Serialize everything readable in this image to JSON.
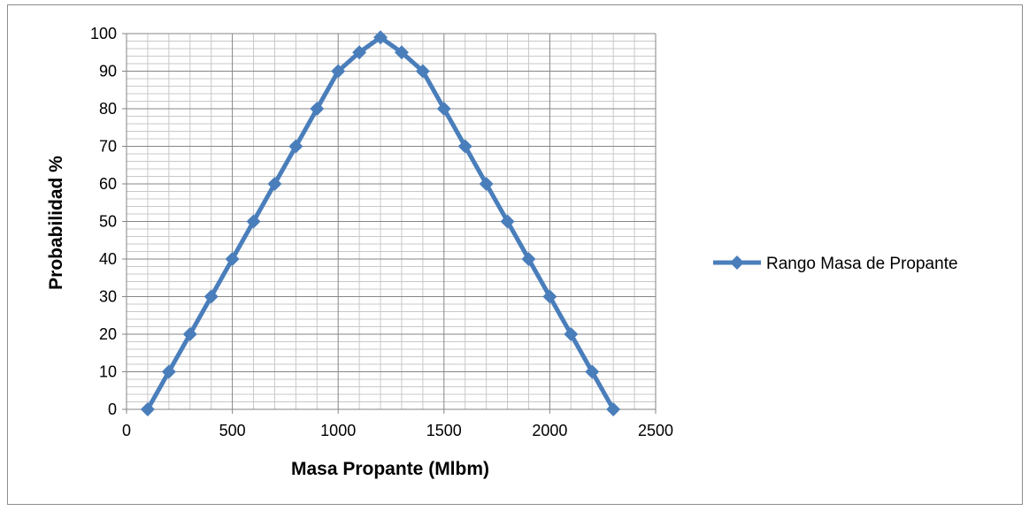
{
  "chart_data": {
    "type": "scatter",
    "xlabel": "Masa Propante (Mlbm)",
    "ylabel": "Probabilidad %",
    "xlim": [
      0,
      2500
    ],
    "ylim": [
      0,
      100
    ],
    "x_ticks": [
      "0",
      "500",
      "1000",
      "1500",
      "2000",
      "2500"
    ],
    "y_ticks": [
      "0",
      "10",
      "20",
      "30",
      "40",
      "50",
      "60",
      "70",
      "80",
      "90",
      "100"
    ],
    "grid": true,
    "minor_grid": true,
    "legend_position": "right",
    "series": [
      {
        "name": "Rango Masa de Propante",
        "color": "#4a7ebb",
        "marker": "diamond",
        "x": [
          100,
          200,
          300,
          400,
          500,
          600,
          700,
          800,
          900,
          1000,
          1100,
          1200,
          1300,
          1400,
          1500,
          1600,
          1700,
          1800,
          1900,
          2000,
          2100,
          2200,
          2300
        ],
        "y": [
          0,
          10,
          20,
          30,
          40,
          50,
          60,
          70,
          80,
          90,
          95,
          99,
          95,
          90,
          80,
          70,
          60,
          50,
          40,
          30,
          20,
          10,
          0
        ]
      }
    ]
  }
}
